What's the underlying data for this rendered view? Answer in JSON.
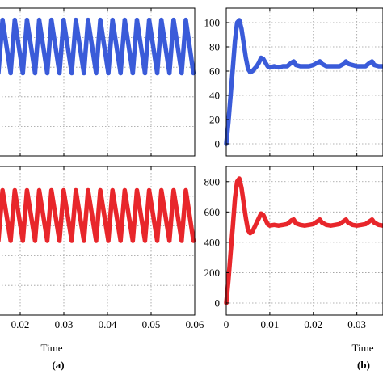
{
  "chart_data": [
    {
      "id": "left-top",
      "type": "line",
      "grid": true,
      "xlim": [
        0.015,
        0.06
      ],
      "ylim": [
        0,
        100
      ],
      "x_ticks": [
        0.02,
        0.03,
        0.04,
        0.05,
        0.06
      ],
      "x_tick_labels": [],
      "y_ticks": [],
      "y_tick_labels": [],
      "xlabel": "",
      "series": [
        {
          "color": "#3a5bd9",
          "wave": {
            "x_start": 0.015,
            "x_end": 0.0597,
            "period": 0.0028,
            "y_min": 56,
            "y_max": 92
          }
        }
      ]
    },
    {
      "id": "left-bottom",
      "type": "line",
      "grid": true,
      "xlim": [
        0.015,
        0.06
      ],
      "ylim": [
        0,
        100
      ],
      "x_ticks": [
        0.02,
        0.03,
        0.04,
        0.05,
        0.06
      ],
      "x_tick_labels": [
        "0.02",
        "0.03",
        "0.04",
        "0.05",
        "0.06"
      ],
      "y_ticks": [],
      "y_tick_labels": [],
      "xlabel": "Time",
      "series": [
        {
          "color": "#e8262b",
          "wave": {
            "x_start": 0.015,
            "x_end": 0.0597,
            "period": 0.0028,
            "y_min": 50,
            "y_max": 84
          }
        }
      ]
    },
    {
      "id": "right-top",
      "type": "line",
      "grid": true,
      "xlim": [
        0,
        0.036
      ],
      "ylim": [
        -10,
        112
      ],
      "x_ticks": [
        0,
        0.01,
        0.02,
        0.03
      ],
      "x_tick_labels": [],
      "y_ticks": [
        0,
        20,
        40,
        60,
        80,
        100
      ],
      "y_tick_labels": [
        "0",
        "20",
        "40",
        "60",
        "80",
        "100"
      ],
      "xlabel": "",
      "series": [
        {
          "color": "#3a5bd9",
          "x": [
            0,
            0.0005,
            0.001,
            0.0015,
            0.002,
            0.0025,
            0.003,
            0.0035,
            0.004,
            0.0045,
            0.005,
            0.0055,
            0.006,
            0.0065,
            0.007,
            0.0075,
            0.008,
            0.0085,
            0.009,
            0.0095,
            0.01,
            0.011,
            0.012,
            0.013,
            0.014,
            0.015,
            0.0155,
            0.016,
            0.017,
            0.018,
            0.019,
            0.02,
            0.021,
            0.0215,
            0.022,
            0.023,
            0.024,
            0.025,
            0.026,
            0.027,
            0.0275,
            0.028,
            0.029,
            0.03,
            0.031,
            0.032,
            0.033,
            0.0335,
            0.034,
            0.035,
            0.036
          ],
          "y": [
            0,
            18,
            40,
            62,
            85,
            100,
            102,
            95,
            83,
            71,
            62,
            59,
            60,
            62,
            64,
            67,
            71,
            70,
            67,
            64,
            63,
            64,
            63,
            64,
            64,
            67,
            68,
            65,
            64,
            64,
            64,
            65,
            67,
            68,
            66,
            64,
            64,
            64,
            64,
            66,
            68,
            66,
            65,
            64,
            64,
            64,
            67,
            68,
            65,
            64,
            64
          ]
        }
      ]
    },
    {
      "id": "right-bottom",
      "type": "line",
      "grid": true,
      "xlim": [
        0,
        0.036
      ],
      "ylim": [
        -80,
        900
      ],
      "x_ticks": [
        0,
        0.01,
        0.02,
        0.03
      ],
      "x_tick_labels": [
        "0",
        "0.01",
        "0.02",
        "0.03"
      ],
      "y_ticks": [
        0,
        200,
        400,
        600,
        800
      ],
      "y_tick_labels": [
        "0",
        "200",
        "400",
        "600",
        "800"
      ],
      "xlabel": "Time",
      "series": [
        {
          "color": "#e8262b",
          "x": [
            0,
            0.0005,
            0.001,
            0.0015,
            0.002,
            0.0025,
            0.003,
            0.0035,
            0.004,
            0.0045,
            0.005,
            0.0055,
            0.006,
            0.0065,
            0.007,
            0.0075,
            0.008,
            0.0085,
            0.009,
            0.0095,
            0.01,
            0.011,
            0.012,
            0.013,
            0.014,
            0.015,
            0.0155,
            0.016,
            0.017,
            0.018,
            0.019,
            0.02,
            0.021,
            0.0215,
            0.022,
            0.023,
            0.024,
            0.025,
            0.026,
            0.027,
            0.0275,
            0.028,
            0.029,
            0.03,
            0.031,
            0.032,
            0.033,
            0.0335,
            0.034,
            0.035,
            0.036
          ],
          "y": [
            0,
            150,
            330,
            500,
            690,
            800,
            820,
            760,
            660,
            560,
            480,
            460,
            470,
            500,
            530,
            560,
            590,
            580,
            550,
            520,
            510,
            515,
            510,
            515,
            520,
            545,
            550,
            525,
            515,
            510,
            515,
            520,
            540,
            550,
            530,
            515,
            510,
            515,
            520,
            540,
            550,
            530,
            515,
            510,
            515,
            520,
            540,
            550,
            530,
            515,
            510
          ]
        }
      ]
    }
  ],
  "panel_labels": {
    "left": "(a)",
    "right": "(b)"
  }
}
